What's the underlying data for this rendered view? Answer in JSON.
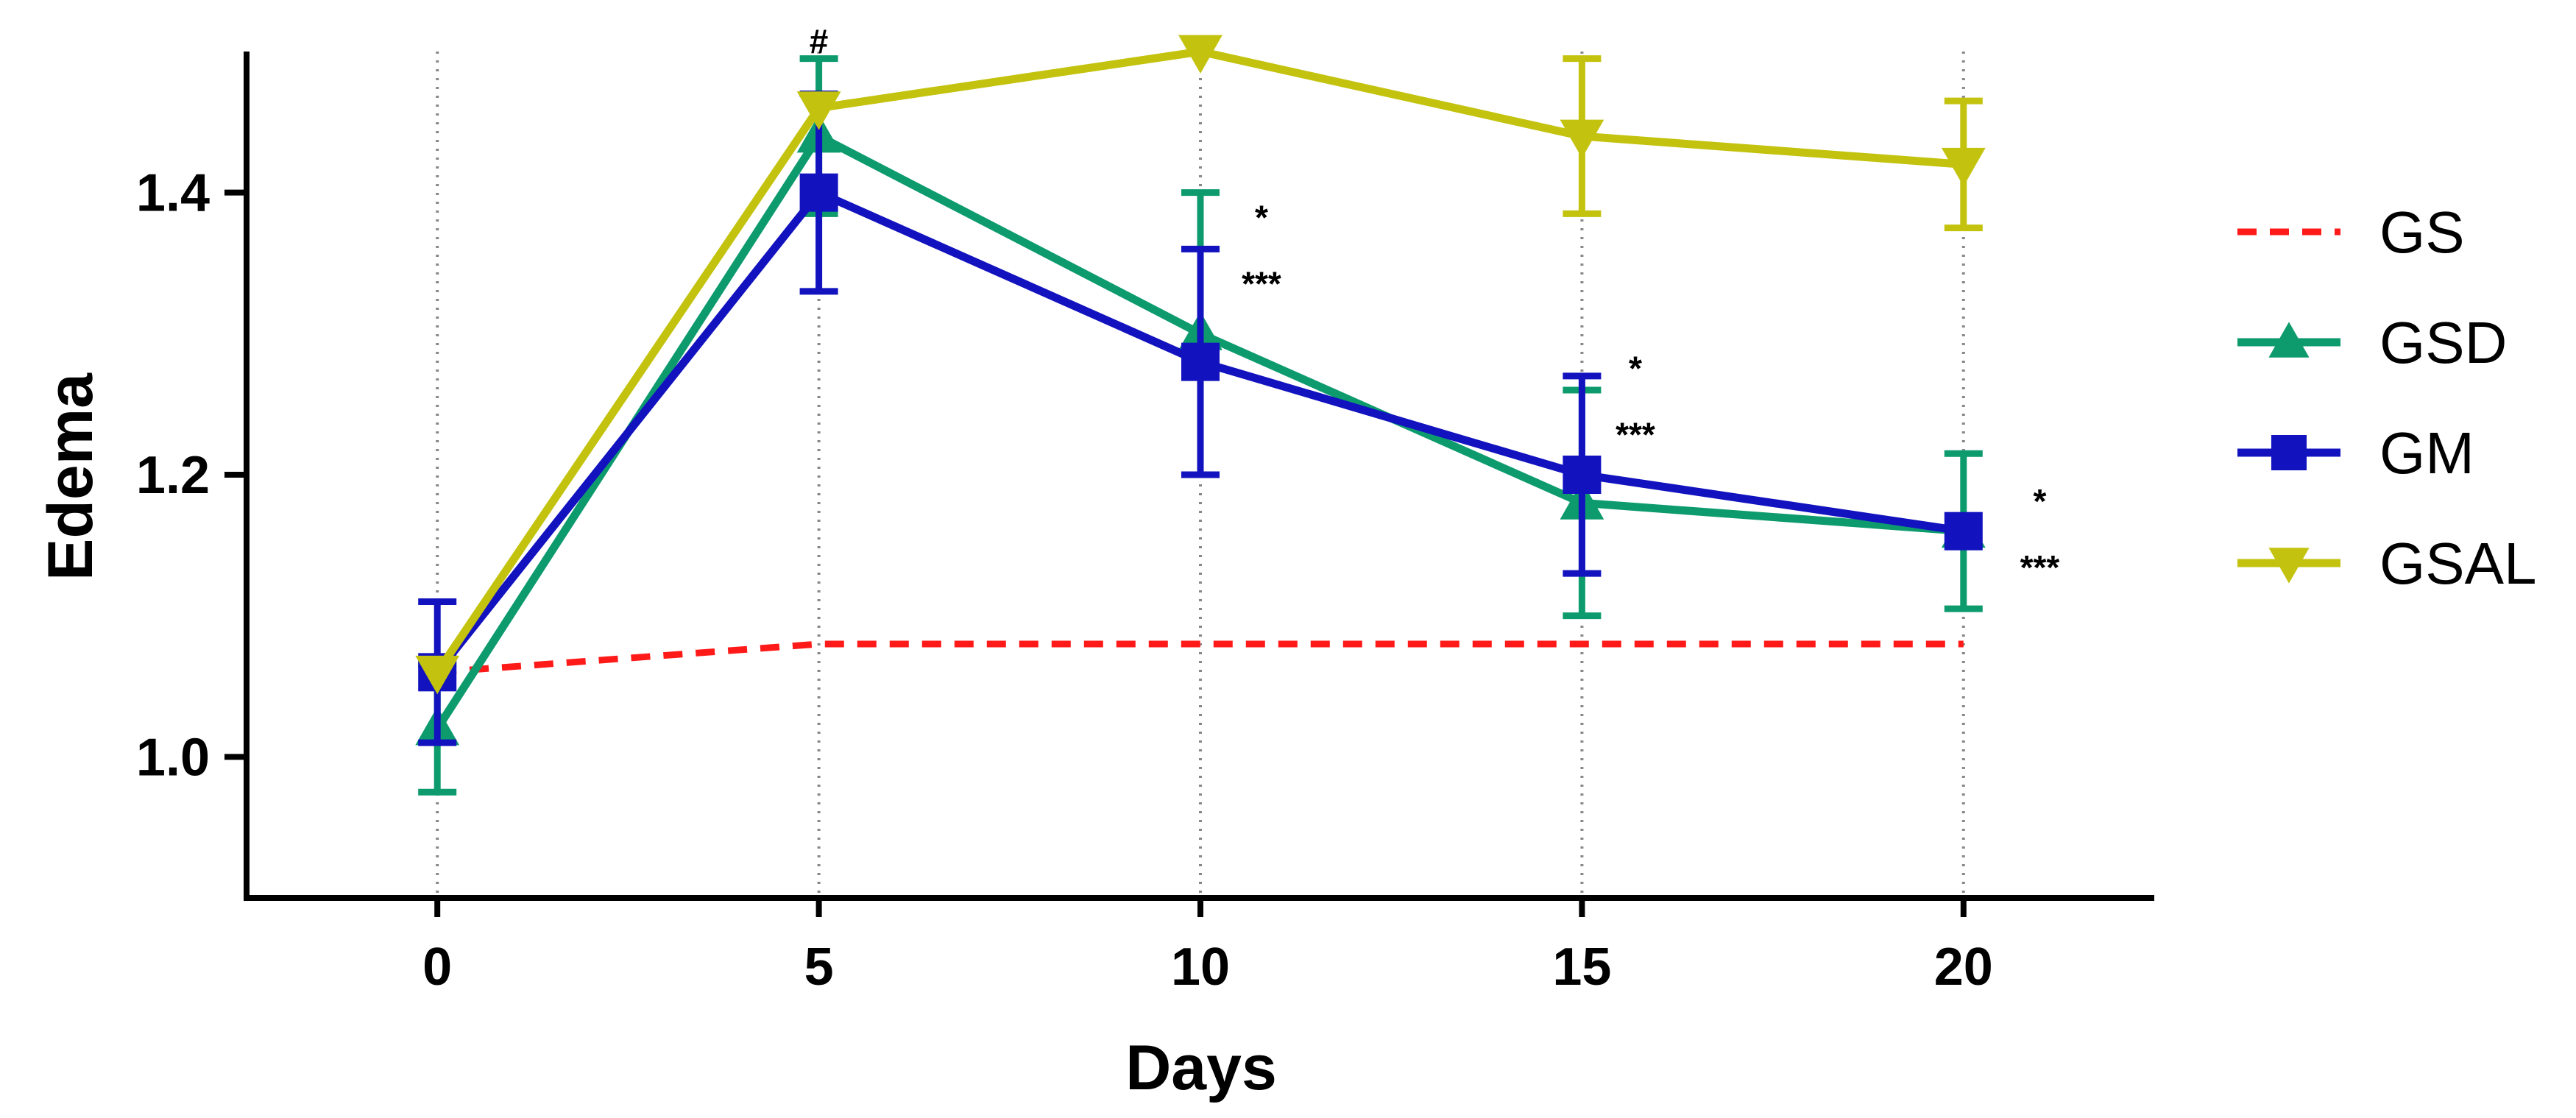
{
  "chart_data": {
    "type": "line",
    "title": "",
    "xlabel": "Days",
    "ylabel": "Edema",
    "xlim": [
      -2.5,
      22.5
    ],
    "ylim": [
      0.9,
      1.5
    ],
    "xticks": [
      0,
      5,
      10,
      15,
      20
    ],
    "xtick_labels": [
      "0",
      "5",
      "10",
      "15",
      "20"
    ],
    "yticks": [
      1.0,
      1.2,
      1.4
    ],
    "ytick_labels": [
      "1.0",
      "1.2",
      "1.4"
    ],
    "vertical_gridlines": "dotted at each x tick",
    "legend_position": "right",
    "series": [
      {
        "name": "GS",
        "color": "#ff1a1a",
        "marker": "none",
        "line_style": "dashed",
        "x": [
          0,
          5,
          10,
          15,
          20
        ],
        "y": [
          1.06,
          1.08,
          1.08,
          1.08,
          1.08
        ],
        "err": [
          0,
          0,
          0,
          0,
          0
        ]
      },
      {
        "name": "GSD",
        "color": "#0d9b6e",
        "marker": "triangle-up",
        "line_style": "solid",
        "x": [
          0,
          5,
          10,
          15,
          20
        ],
        "y": [
          1.02,
          1.44,
          1.3,
          1.18,
          1.16
        ],
        "err": [
          0.045,
          0.055,
          0.1,
          0.08,
          0.055
        ]
      },
      {
        "name": "GM",
        "color": "#1212bf",
        "marker": "square",
        "line_style": "solid",
        "x": [
          0,
          5,
          10,
          15,
          20
        ],
        "y": [
          1.06,
          1.4,
          1.28,
          1.2,
          1.16
        ],
        "err": [
          0.05,
          0.07,
          0.08,
          0.07,
          0.0
        ]
      },
      {
        "name": "GSAL",
        "color": "#c3c30f",
        "marker": "triangle-down",
        "line_style": "solid",
        "x": [
          0,
          5,
          10,
          15,
          20
        ],
        "y": [
          1.06,
          1.46,
          1.5,
          1.44,
          1.42
        ],
        "err": [
          0,
          0,
          0,
          0.055,
          0.045
        ]
      }
    ],
    "annotations": [
      {
        "text": "#",
        "x": 5.0,
        "y": 1.499
      },
      {
        "text": "*",
        "x": 10.8,
        "y": 1.374
      },
      {
        "text": "***",
        "x": 10.8,
        "y": 1.327
      },
      {
        "text": "*",
        "x": 15.7,
        "y": 1.267
      },
      {
        "text": "***",
        "x": 15.7,
        "y": 1.22
      },
      {
        "text": "*",
        "x": 21.0,
        "y": 1.173
      },
      {
        "text": "***",
        "x": 21.0,
        "y": 1.126
      }
    ]
  }
}
